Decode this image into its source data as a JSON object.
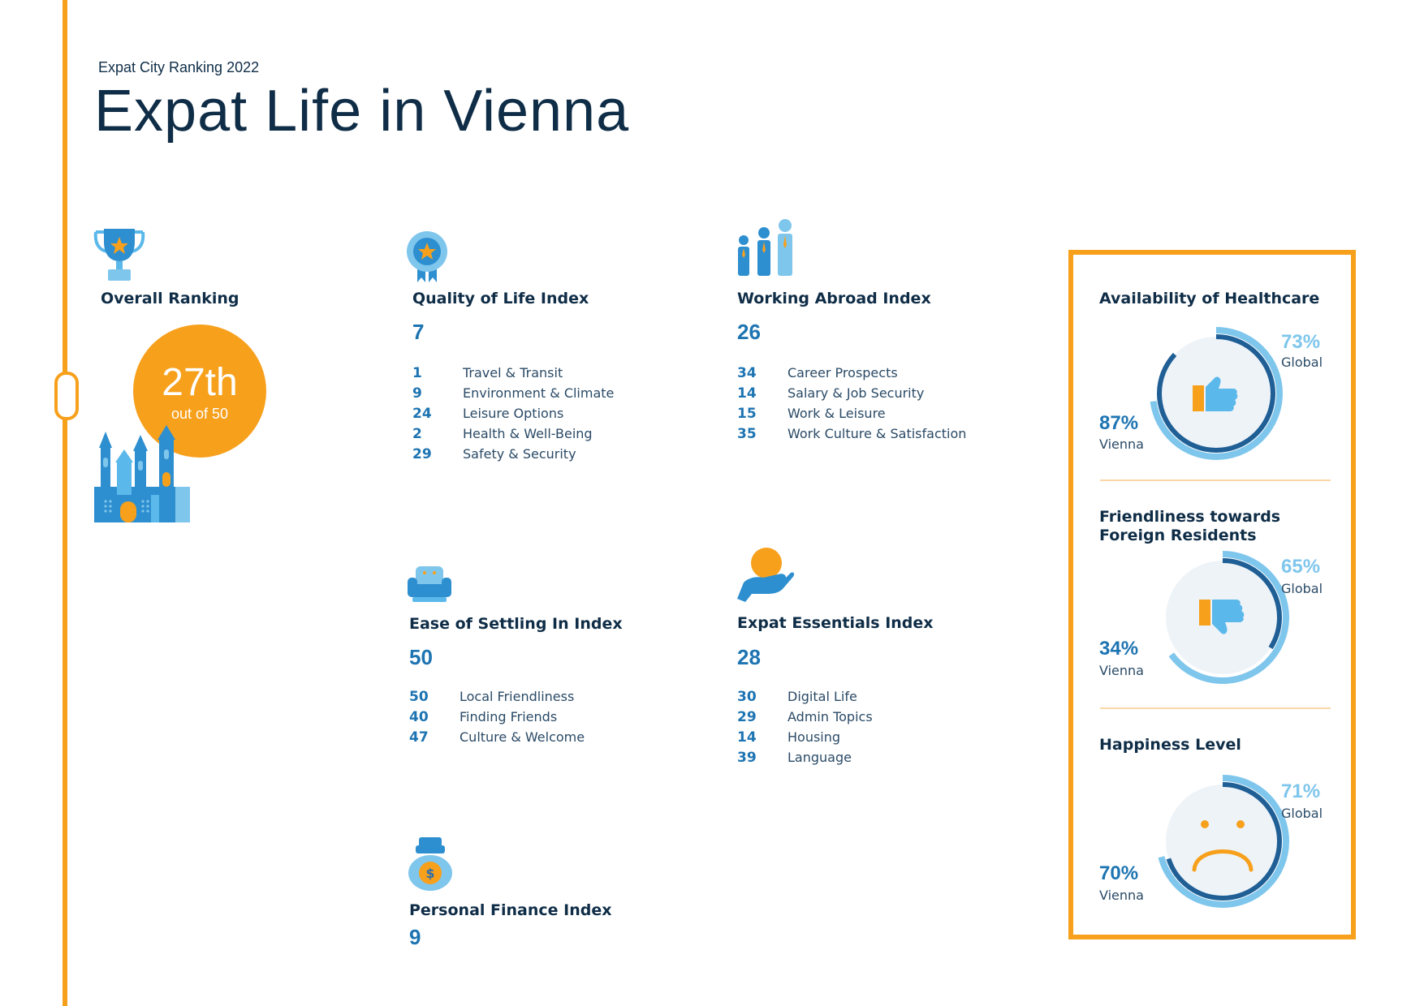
{
  "header": {
    "subtitle": "Expat City Ranking 2022",
    "title": "Expat Life in Vienna"
  },
  "overall": {
    "heading": "Overall Ranking",
    "rank": "27th",
    "out_of": "out of 50"
  },
  "indices": {
    "quality_of_life": {
      "heading": "Quality of Life Index",
      "score": "7",
      "items": [
        {
          "rank": "1",
          "label": "Travel & Transit"
        },
        {
          "rank": "9",
          "label": "Environment & Climate"
        },
        {
          "rank": "24",
          "label": "Leisure Options"
        },
        {
          "rank": "2",
          "label": "Health & Well-Being"
        },
        {
          "rank": "29",
          "label": "Safety & Security"
        }
      ]
    },
    "working_abroad": {
      "heading": "Working Abroad Index",
      "score": "26",
      "items": [
        {
          "rank": "34",
          "label": "Career Prospects"
        },
        {
          "rank": "14",
          "label": "Salary & Job Security"
        },
        {
          "rank": "15",
          "label": "Work & Leisure"
        },
        {
          "rank": "35",
          "label": "Work Culture & Satisfaction"
        }
      ]
    },
    "ease_of_settling": {
      "heading": "Ease of Settling In Index",
      "score": "50",
      "items": [
        {
          "rank": "50",
          "label": "Local Friendliness"
        },
        {
          "rank": "40",
          "label": "Finding Friends"
        },
        {
          "rank": "47",
          "label": "Culture & Welcome"
        }
      ]
    },
    "expat_essentials": {
      "heading": "Expat Essentials Index",
      "score": "28",
      "items": [
        {
          "rank": "30",
          "label": "Digital Life"
        },
        {
          "rank": "29",
          "label": "Admin Topics"
        },
        {
          "rank": "14",
          "label": "Housing"
        },
        {
          "rank": "39",
          "label": "Language"
        }
      ]
    },
    "personal_finance": {
      "heading": "Personal Finance Index",
      "score": "9"
    }
  },
  "gauges": [
    {
      "title": "Availability of Healthcare",
      "global_pct": "73%",
      "global_value": 73,
      "global_label": "Global",
      "vienna_pct": "87%",
      "vienna_value": 87,
      "vienna_label": "Vienna",
      "icon": "thumbs-up-icon"
    },
    {
      "title": "Friendliness towards Foreign Residents",
      "global_pct": "65%",
      "global_value": 65,
      "global_label": "Global",
      "vienna_pct": "34%",
      "vienna_value": 34,
      "vienna_label": "Vienna",
      "icon": "thumbs-down-icon"
    },
    {
      "title": "Happiness Level",
      "global_pct": "71%",
      "global_value": 71,
      "global_label": "Global",
      "vienna_pct": "70%",
      "vienna_value": 70,
      "vienna_label": "Vienna",
      "icon": "sad-face-icon"
    }
  ],
  "colors": {
    "accent": "#f7a01c",
    "navy": "#0f2d47",
    "blue": "#1d74b2",
    "light_blue": "#7fc6ec",
    "dark_ring": "#1f5f95"
  }
}
